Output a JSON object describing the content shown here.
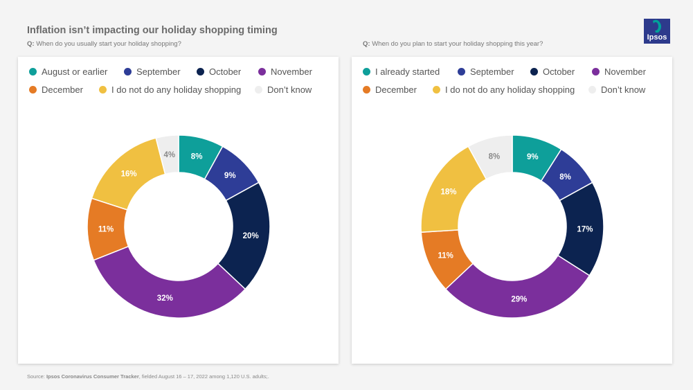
{
  "header": {
    "title": "Inflation isn’t impacting our holiday shopping timing"
  },
  "logo": {
    "text": "Ipsos",
    "bg": "#2d3a8c",
    "accent": "#00a19a"
  },
  "left": {
    "question_prefix": "Q:",
    "question": "When do you usually start your holiday shopping?"
  },
  "right": {
    "question_prefix": "Q:",
    "question": "When do you plan to start your holiday shopping this year?"
  },
  "chart_data": [
    {
      "type": "pie",
      "donut": true,
      "legend_position": "top",
      "categories": [
        "August or earlier",
        "September",
        "October",
        "November",
        "December",
        "I do not do any holiday shopping",
        "Don’t know"
      ],
      "values": [
        8,
        9,
        20,
        32,
        11,
        16,
        4
      ],
      "labels": [
        "8%",
        "9%",
        "20%",
        "32%",
        "11%",
        "16%",
        "4%"
      ],
      "colors": [
        "#0e9f9a",
        "#2e3d97",
        "#0c2350",
        "#7b2f9c",
        "#e57b25",
        "#f0c041",
        "#eeeeee"
      ],
      "label_colors": [
        "#ffffff",
        "#ffffff",
        "#ffffff",
        "#ffffff",
        "#ffffff",
        "#ffffff",
        "#8a8a8a"
      ]
    },
    {
      "type": "pie",
      "donut": true,
      "legend_position": "top",
      "categories": [
        "I already started",
        "September",
        "October",
        "November",
        "December",
        "I do not do any holiday shopping",
        "Don’t know"
      ],
      "values": [
        9,
        8,
        17,
        29,
        11,
        18,
        8
      ],
      "labels": [
        "9%",
        "8%",
        "17%",
        "29%",
        "11%",
        "18%",
        "8%"
      ],
      "colors": [
        "#0e9f9a",
        "#2e3d97",
        "#0c2350",
        "#7b2f9c",
        "#e57b25",
        "#f0c041",
        "#eeeeee"
      ],
      "label_colors": [
        "#ffffff",
        "#ffffff",
        "#ffffff",
        "#ffffff",
        "#ffffff",
        "#ffffff",
        "#8a8a8a"
      ]
    }
  ],
  "footer": {
    "prefix": "Source:",
    "source_name": "Ipsos Coronavirus Consumer Tracker",
    "details": ", fielded August 16 – 17, 2022 among 1,120 U.S. adults;."
  }
}
